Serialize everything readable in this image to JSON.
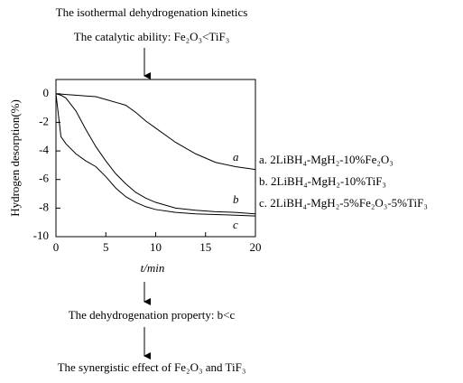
{
  "header": {
    "title": "The isothermal dehydrogenation kinetics",
    "subtitle": "The catalytic ability: Fe₂O₃<TiF₃"
  },
  "chart_data": {
    "type": "line",
    "xlabel": "t/min",
    "ylabel": "Hydrogen desorption(%)",
    "x": [
      0,
      0.5,
      1,
      2,
      3,
      4,
      5,
      6,
      7,
      8,
      9,
      10,
      12,
      14,
      16,
      18,
      20
    ],
    "xlim": [
      0,
      20
    ],
    "xticks": [
      0,
      5,
      10,
      15,
      20
    ],
    "ylim": [
      -10,
      1
    ],
    "yticks": [
      0,
      -2,
      -4,
      -6,
      -8,
      -10
    ],
    "series": [
      {
        "name": "a. 2LiBH₄-MgH₂-10%Fe₂O₃",
        "label": "a",
        "color": "#000000",
        "values": [
          0,
          -0.02,
          -0.05,
          -0.1,
          -0.15,
          -0.2,
          -0.4,
          -0.6,
          -0.8,
          -1.3,
          -1.9,
          -2.4,
          -3.4,
          -4.2,
          -4.8,
          -5.1,
          -5.3
        ]
      },
      {
        "name": "b. 2LiBH₄-MgH₂-10%TiF₃",
        "label": "b",
        "color": "#000000",
        "values": [
          0,
          -0.1,
          -0.3,
          -1.2,
          -2.5,
          -3.7,
          -4.7,
          -5.6,
          -6.3,
          -6.9,
          -7.3,
          -7.6,
          -8.0,
          -8.15,
          -8.25,
          -8.3,
          -8.4
        ]
      },
      {
        "name": "c. 2LiBH₄-MgH₂-5%Fe₂O₃-5%TiF₃",
        "label": "c",
        "color": "#000000",
        "values": [
          0,
          -3.0,
          -3.5,
          -4.2,
          -4.7,
          -5.1,
          -5.8,
          -6.6,
          -7.2,
          -7.6,
          -7.9,
          -8.1,
          -8.3,
          -8.4,
          -8.45,
          -8.5,
          -8.55
        ]
      }
    ]
  },
  "footer": {
    "property": "The dehydrogenation property: b<c",
    "conclusion": "The synergistic effect of Fe₂O₃ and TiF₃"
  }
}
